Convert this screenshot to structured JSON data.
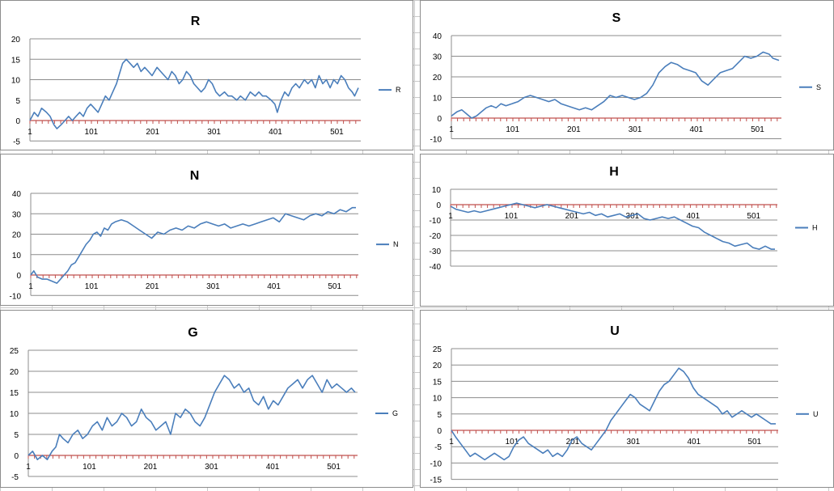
{
  "chart_data": [
    {
      "type": "line",
      "title": "R",
      "ylim": [
        -5,
        20
      ],
      "yticks": [
        -5,
        0,
        5,
        10,
        15,
        20
      ],
      "xlim": [
        1,
        540
      ],
      "xticks": [
        1,
        101,
        201,
        301,
        401,
        501
      ],
      "grid": true,
      "legend": "right",
      "series": [
        {
          "name": "R",
          "color": "#4a7ebb",
          "x": [
            1,
            8,
            14,
            20,
            28,
            34,
            40,
            45,
            52,
            58,
            64,
            70,
            76,
            82,
            88,
            94,
            100,
            106,
            112,
            118,
            124,
            130,
            136,
            142,
            148,
            152,
            158,
            164,
            170,
            176,
            182,
            188,
            194,
            200,
            208,
            214,
            220,
            226,
            232,
            238,
            244,
            250,
            256,
            262,
            268,
            274,
            280,
            286,
            292,
            298,
            304,
            310,
            318,
            324,
            330,
            338,
            344,
            352,
            360,
            368,
            374,
            380,
            386,
            394,
            400,
            404,
            410,
            416,
            422,
            428,
            434,
            440,
            448,
            454,
            460,
            466,
            472,
            478,
            484,
            490,
            496,
            502,
            508,
            514,
            520,
            526,
            530,
            536
          ],
          "y": [
            0,
            2,
            1,
            3,
            2,
            1,
            -1,
            -2,
            -1,
            0,
            1,
            0,
            1,
            2,
            1,
            3,
            4,
            3,
            2,
            4,
            6,
            5,
            7,
            9,
            12,
            14,
            15,
            14,
            13,
            14,
            12,
            13,
            12,
            11,
            13,
            12,
            11,
            10,
            12,
            11,
            9,
            10,
            12,
            11,
            9,
            8,
            7,
            8,
            10,
            9,
            7,
            6,
            7,
            6,
            6,
            5,
            6,
            5,
            7,
            6,
            7,
            6,
            6,
            5,
            4,
            2,
            5,
            7,
            6,
            8,
            9,
            8,
            10,
            9,
            10,
            8,
            11,
            9,
            10,
            8,
            10,
            9,
            11,
            10,
            8,
            7,
            6,
            8
          ]
        }
      ]
    },
    {
      "type": "line",
      "title": "S",
      "ylim": [
        -10,
        40
      ],
      "yticks": [
        -10,
        0,
        10,
        20,
        30,
        40
      ],
      "xlim": [
        1,
        540
      ],
      "xticks": [
        1,
        101,
        201,
        301,
        401,
        501
      ],
      "grid": true,
      "legend": "right",
      "series": [
        {
          "name": "S",
          "color": "#4a7ebb",
          "x": [
            1,
            10,
            18,
            26,
            34,
            42,
            50,
            58,
            66,
            74,
            82,
            90,
            100,
            110,
            120,
            130,
            140,
            150,
            160,
            170,
            180,
            190,
            200,
            210,
            220,
            230,
            240,
            250,
            260,
            270,
            280,
            290,
            300,
            310,
            320,
            330,
            340,
            350,
            360,
            370,
            380,
            390,
            400,
            410,
            420,
            430,
            440,
            450,
            460,
            470,
            480,
            490,
            500,
            510,
            520,
            526,
            536
          ],
          "y": [
            1,
            3,
            4,
            2,
            0,
            1,
            3,
            5,
            6,
            5,
            7,
            6,
            7,
            8,
            10,
            11,
            10,
            9,
            8,
            9,
            7,
            6,
            5,
            4,
            5,
            4,
            6,
            8,
            11,
            10,
            11,
            10,
            9,
            10,
            12,
            16,
            22,
            25,
            27,
            26,
            24,
            23,
            22,
            18,
            16,
            19,
            22,
            23,
            24,
            27,
            30,
            29,
            30,
            32,
            31,
            29,
            28
          ]
        }
      ]
    },
    {
      "type": "line",
      "title": "N",
      "ylim": [
        -10,
        40
      ],
      "yticks": [
        -10,
        0,
        10,
        20,
        30,
        40
      ],
      "xlim": [
        1,
        540
      ],
      "xticks": [
        1,
        101,
        201,
        301,
        401,
        501
      ],
      "grid": true,
      "legend": "right",
      "series": [
        {
          "name": "N",
          "color": "#4a7ebb",
          "x": [
            1,
            6,
            12,
            20,
            28,
            36,
            44,
            50,
            56,
            62,
            68,
            74,
            80,
            86,
            92,
            98,
            104,
            110,
            116,
            122,
            128,
            134,
            140,
            150,
            160,
            170,
            180,
            190,
            200,
            210,
            220,
            230,
            240,
            250,
            260,
            270,
            280,
            290,
            300,
            310,
            320,
            330,
            340,
            350,
            360,
            370,
            380,
            390,
            400,
            410,
            420,
            430,
            440,
            450,
            460,
            470,
            480,
            490,
            500,
            510,
            520,
            530,
            536
          ],
          "y": [
            0,
            2,
            -1,
            -2,
            -2,
            -3,
            -4,
            -2,
            0,
            2,
            5,
            6,
            9,
            12,
            15,
            17,
            20,
            21,
            19,
            23,
            22,
            25,
            26,
            27,
            26,
            24,
            22,
            20,
            18,
            21,
            20,
            22,
            23,
            22,
            24,
            23,
            25,
            26,
            25,
            24,
            25,
            23,
            24,
            25,
            24,
            25,
            26,
            27,
            28,
            26,
            30,
            29,
            28,
            27,
            29,
            30,
            29,
            31,
            30,
            32,
            31,
            33,
            33
          ]
        }
      ]
    },
    {
      "type": "line",
      "title": "H",
      "ylim": [
        -40,
        10
      ],
      "yticks": [
        -40,
        -30,
        -20,
        -10,
        0,
        10
      ],
      "xlim": [
        1,
        540
      ],
      "xticks": [
        1,
        101,
        201,
        301,
        401,
        501
      ],
      "grid": true,
      "legend": "right",
      "series": [
        {
          "name": "H",
          "color": "#4a7ebb",
          "x": [
            1,
            10,
            20,
            30,
            40,
            50,
            60,
            70,
            80,
            90,
            100,
            110,
            120,
            130,
            140,
            150,
            160,
            170,
            180,
            190,
            200,
            210,
            220,
            230,
            240,
            250,
            260,
            270,
            280,
            290,
            300,
            310,
            320,
            330,
            340,
            350,
            360,
            370,
            380,
            390,
            400,
            410,
            420,
            430,
            440,
            450,
            460,
            470,
            480,
            490,
            500,
            510,
            520,
            530,
            536
          ],
          "y": [
            -1,
            -3,
            -4,
            -5,
            -4,
            -5,
            -4,
            -3,
            -2,
            -1,
            0,
            1,
            0,
            -1,
            -2,
            -1,
            0,
            -1,
            -2,
            -3,
            -4,
            -5,
            -6,
            -5,
            -7,
            -6,
            -8,
            -7,
            -6,
            -8,
            -7,
            -6,
            -9,
            -10,
            -9,
            -8,
            -9,
            -8,
            -10,
            -12,
            -14,
            -15,
            -18,
            -20,
            -22,
            -24,
            -25,
            -27,
            -26,
            -25,
            -28,
            -29,
            -27,
            -29,
            -29
          ]
        }
      ]
    },
    {
      "type": "line",
      "title": "G",
      "ylim": [
        -5,
        25
      ],
      "yticks": [
        -5,
        0,
        5,
        10,
        15,
        20,
        25
      ],
      "xlim": [
        1,
        540
      ],
      "xticks": [
        1,
        101,
        201,
        301,
        401,
        501
      ],
      "grid": true,
      "legend": "right",
      "series": [
        {
          "name": "G",
          "color": "#4a7ebb",
          "x": [
            1,
            8,
            16,
            24,
            32,
            40,
            46,
            52,
            58,
            66,
            74,
            82,
            90,
            98,
            106,
            114,
            122,
            130,
            138,
            146,
            154,
            162,
            170,
            178,
            186,
            194,
            202,
            210,
            218,
            226,
            234,
            242,
            250,
            258,
            266,
            274,
            282,
            290,
            298,
            306,
            314,
            322,
            330,
            338,
            346,
            354,
            362,
            370,
            378,
            386,
            394,
            402,
            410,
            418,
            426,
            434,
            442,
            450,
            458,
            466,
            474,
            482,
            490,
            498,
            506,
            514,
            522,
            530,
            536
          ],
          "y": [
            0,
            1,
            -1,
            0,
            -1,
            1,
            2,
            5,
            4,
            3,
            5,
            6,
            4,
            5,
            7,
            8,
            6,
            9,
            7,
            8,
            10,
            9,
            7,
            8,
            11,
            9,
            8,
            6,
            7,
            8,
            5,
            10,
            9,
            11,
            10,
            8,
            7,
            9,
            12,
            15,
            17,
            19,
            18,
            16,
            17,
            15,
            16,
            13,
            12,
            14,
            11,
            13,
            12,
            14,
            16,
            17,
            18,
            16,
            18,
            19,
            17,
            15,
            18,
            16,
            17,
            16,
            15,
            16,
            15
          ]
        }
      ]
    },
    {
      "type": "line",
      "title": "U",
      "ylim": [
        -15,
        25
      ],
      "yticks": [
        -15,
        -10,
        -5,
        0,
        5,
        10,
        15,
        20,
        25
      ],
      "xlim": [
        1,
        540
      ],
      "xticks": [
        1,
        101,
        201,
        301,
        401,
        501
      ],
      "grid": true,
      "legend": "right",
      "series": [
        {
          "name": "U",
          "color": "#4a7ebb",
          "x": [
            1,
            8,
            16,
            24,
            32,
            40,
            48,
            56,
            64,
            72,
            80,
            88,
            96,
            104,
            112,
            120,
            128,
            136,
            144,
            152,
            160,
            168,
            176,
            184,
            192,
            200,
            208,
            216,
            224,
            232,
            240,
            248,
            256,
            264,
            272,
            280,
            288,
            296,
            304,
            312,
            320,
            328,
            336,
            344,
            352,
            360,
            368,
            376,
            384,
            392,
            400,
            408,
            416,
            424,
            432,
            440,
            448,
            456,
            464,
            472,
            480,
            488,
            496,
            504,
            512,
            520,
            528,
            536
          ],
          "y": [
            0,
            -2,
            -4,
            -6,
            -8,
            -7,
            -8,
            -9,
            -8,
            -7,
            -8,
            -9,
            -8,
            -5,
            -3,
            -2,
            -4,
            -5,
            -6,
            -7,
            -6,
            -8,
            -7,
            -8,
            -6,
            -3,
            -2,
            -4,
            -5,
            -6,
            -4,
            -2,
            0,
            3,
            5,
            7,
            9,
            11,
            10,
            8,
            7,
            6,
            9,
            12,
            14,
            15,
            17,
            19,
            18,
            16,
            13,
            11,
            10,
            9,
            8,
            7,
            5,
            6,
            4,
            5,
            6,
            5,
            4,
            5,
            4,
            3,
            2,
            2
          ]
        }
      ]
    }
  ]
}
